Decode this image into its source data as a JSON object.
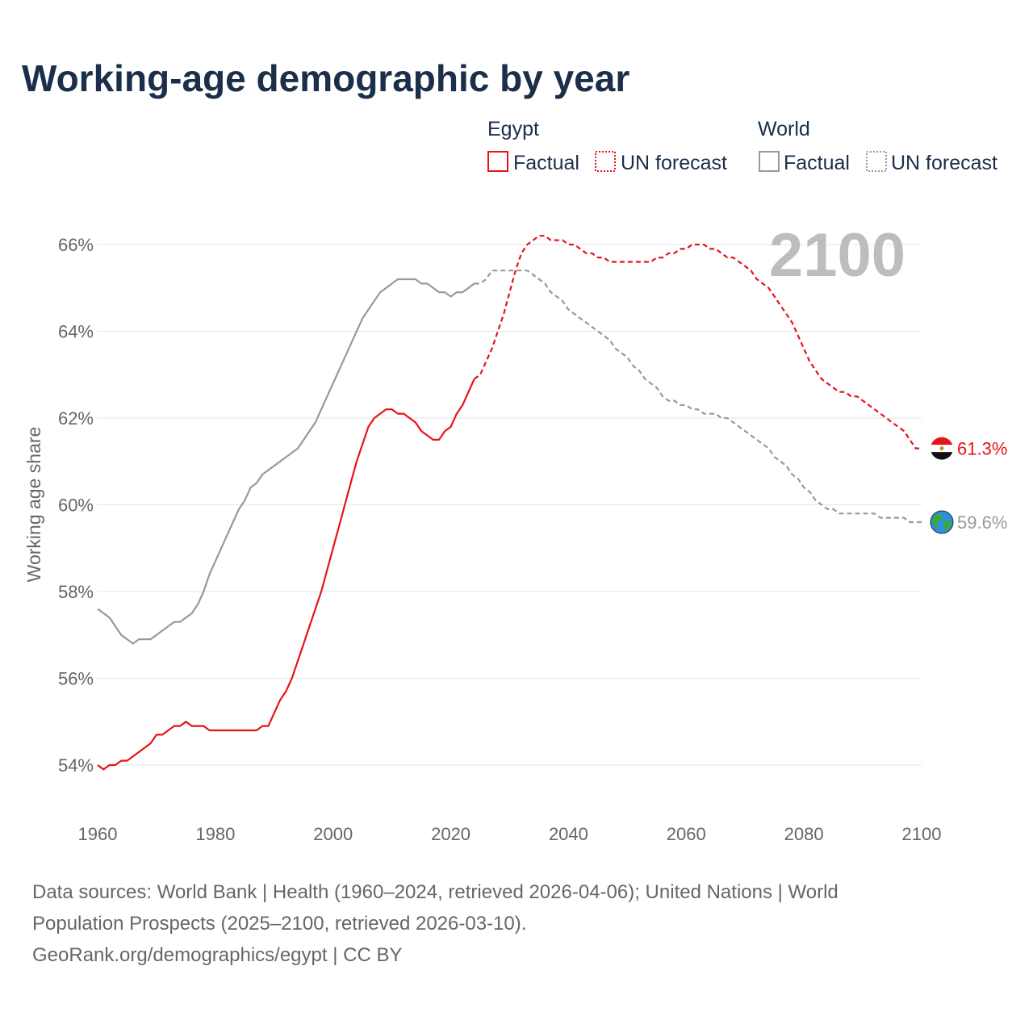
{
  "chart_data": {
    "type": "line",
    "title": "Working-age demographic by year",
    "ylabel": "Working age share",
    "xlabel": "",
    "xlim": [
      1960,
      2100
    ],
    "ylim": [
      53,
      67
    ],
    "x_ticks": [
      1960,
      1980,
      2000,
      2020,
      2040,
      2060,
      2080,
      2100
    ],
    "y_ticks": [
      54,
      56,
      58,
      60,
      62,
      64,
      66
    ],
    "y_tick_labels": [
      "54%",
      "56%",
      "58%",
      "60%",
      "62%",
      "64%",
      "66%"
    ],
    "x_tick_labels": [
      "1960",
      "1980",
      "2000",
      "2020",
      "2040",
      "2060",
      "2080",
      "2100"
    ],
    "year_label": "2100",
    "legend": {
      "groups": [
        {
          "name": "Egypt",
          "color": "#e8121a",
          "factual_label": "Factual",
          "forecast_label": "UN forecast"
        },
        {
          "name": "World",
          "color": "#999999",
          "factual_label": "Factual",
          "forecast_label": "UN forecast"
        }
      ]
    },
    "series": [
      {
        "name": "Egypt",
        "color": "#e8121a",
        "end_label": "61.3%",
        "end_icon": "egypt-flag-icon",
        "factual": [
          [
            1960,
            54.0
          ],
          [
            1961,
            53.9
          ],
          [
            1962,
            54.0
          ],
          [
            1963,
            54.0
          ],
          [
            1964,
            54.1
          ],
          [
            1965,
            54.1
          ],
          [
            1966,
            54.2
          ],
          [
            1967,
            54.3
          ],
          [
            1968,
            54.4
          ],
          [
            1969,
            54.5
          ],
          [
            1970,
            54.7
          ],
          [
            1971,
            54.7
          ],
          [
            1972,
            54.8
          ],
          [
            1973,
            54.9
          ],
          [
            1974,
            54.9
          ],
          [
            1975,
            55.0
          ],
          [
            1976,
            54.9
          ],
          [
            1977,
            54.9
          ],
          [
            1978,
            54.9
          ],
          [
            1979,
            54.8
          ],
          [
            1980,
            54.8
          ],
          [
            1981,
            54.8
          ],
          [
            1982,
            54.8
          ],
          [
            1983,
            54.8
          ],
          [
            1984,
            54.8
          ],
          [
            1985,
            54.8
          ],
          [
            1986,
            54.8
          ],
          [
            1987,
            54.8
          ],
          [
            1988,
            54.9
          ],
          [
            1989,
            54.9
          ],
          [
            1990,
            55.2
          ],
          [
            1991,
            55.5
          ],
          [
            1992,
            55.7
          ],
          [
            1993,
            56.0
          ],
          [
            1994,
            56.4
          ],
          [
            1995,
            56.8
          ],
          [
            1996,
            57.2
          ],
          [
            1997,
            57.6
          ],
          [
            1998,
            58.0
          ],
          [
            1999,
            58.5
          ],
          [
            2000,
            59.0
          ],
          [
            2001,
            59.5
          ],
          [
            2002,
            60.0
          ],
          [
            2003,
            60.5
          ],
          [
            2004,
            61.0
          ],
          [
            2005,
            61.4
          ],
          [
            2006,
            61.8
          ],
          [
            2007,
            62.0
          ],
          [
            2008,
            62.1
          ],
          [
            2009,
            62.2
          ],
          [
            2010,
            62.2
          ],
          [
            2011,
            62.1
          ],
          [
            2012,
            62.1
          ],
          [
            2013,
            62.0
          ],
          [
            2014,
            61.9
          ],
          [
            2015,
            61.7
          ],
          [
            2016,
            61.6
          ],
          [
            2017,
            61.5
          ],
          [
            2018,
            61.5
          ],
          [
            2019,
            61.7
          ],
          [
            2020,
            61.8
          ],
          [
            2021,
            62.1
          ],
          [
            2022,
            62.3
          ],
          [
            2023,
            62.6
          ],
          [
            2024,
            62.9
          ]
        ],
        "forecast": [
          [
            2024,
            62.9
          ],
          [
            2025,
            63.0
          ],
          [
            2026,
            63.3
          ],
          [
            2027,
            63.6
          ],
          [
            2028,
            64.0
          ],
          [
            2029,
            64.4
          ],
          [
            2030,
            64.9
          ],
          [
            2031,
            65.4
          ],
          [
            2032,
            65.8
          ],
          [
            2033,
            66.0
          ],
          [
            2034,
            66.1
          ],
          [
            2035,
            66.2
          ],
          [
            2036,
            66.2
          ],
          [
            2037,
            66.1
          ],
          [
            2038,
            66.1
          ],
          [
            2039,
            66.1
          ],
          [
            2040,
            66.0
          ],
          [
            2041,
            66.0
          ],
          [
            2042,
            65.9
          ],
          [
            2043,
            65.8
          ],
          [
            2044,
            65.8
          ],
          [
            2045,
            65.7
          ],
          [
            2046,
            65.7
          ],
          [
            2047,
            65.6
          ],
          [
            2048,
            65.6
          ],
          [
            2049,
            65.6
          ],
          [
            2050,
            65.6
          ],
          [
            2051,
            65.6
          ],
          [
            2052,
            65.6
          ],
          [
            2053,
            65.6
          ],
          [
            2054,
            65.6
          ],
          [
            2055,
            65.7
          ],
          [
            2056,
            65.7
          ],
          [
            2057,
            65.8
          ],
          [
            2058,
            65.8
          ],
          [
            2059,
            65.9
          ],
          [
            2060,
            65.9
          ],
          [
            2061,
            66.0
          ],
          [
            2062,
            66.0
          ],
          [
            2063,
            66.0
          ],
          [
            2064,
            65.9
          ],
          [
            2065,
            65.9
          ],
          [
            2066,
            65.8
          ],
          [
            2067,
            65.7
          ],
          [
            2068,
            65.7
          ],
          [
            2069,
            65.6
          ],
          [
            2070,
            65.5
          ],
          [
            2071,
            65.4
          ],
          [
            2072,
            65.2
          ],
          [
            2073,
            65.1
          ],
          [
            2074,
            65.0
          ],
          [
            2075,
            64.8
          ],
          [
            2076,
            64.6
          ],
          [
            2077,
            64.4
          ],
          [
            2078,
            64.2
          ],
          [
            2079,
            63.9
          ],
          [
            2080,
            63.6
          ],
          [
            2081,
            63.3
          ],
          [
            2082,
            63.1
          ],
          [
            2083,
            62.9
          ],
          [
            2084,
            62.8
          ],
          [
            2085,
            62.7
          ],
          [
            2086,
            62.6
          ],
          [
            2087,
            62.6
          ],
          [
            2088,
            62.5
          ],
          [
            2089,
            62.5
          ],
          [
            2090,
            62.4
          ],
          [
            2091,
            62.3
          ],
          [
            2092,
            62.2
          ],
          [
            2093,
            62.1
          ],
          [
            2094,
            62.0
          ],
          [
            2095,
            61.9
          ],
          [
            2096,
            61.8
          ],
          [
            2097,
            61.7
          ],
          [
            2098,
            61.5
          ],
          [
            2099,
            61.3
          ],
          [
            2100,
            61.3
          ]
        ]
      },
      {
        "name": "World",
        "color": "#999999",
        "end_label": "59.6%",
        "end_icon": "globe-icon",
        "factual": [
          [
            1960,
            57.6
          ],
          [
            1961,
            57.5
          ],
          [
            1962,
            57.4
          ],
          [
            1963,
            57.2
          ],
          [
            1964,
            57.0
          ],
          [
            1965,
            56.9
          ],
          [
            1966,
            56.8
          ],
          [
            1967,
            56.9
          ],
          [
            1968,
            56.9
          ],
          [
            1969,
            56.9
          ],
          [
            1970,
            57.0
          ],
          [
            1971,
            57.1
          ],
          [
            1972,
            57.2
          ],
          [
            1973,
            57.3
          ],
          [
            1974,
            57.3
          ],
          [
            1975,
            57.4
          ],
          [
            1976,
            57.5
          ],
          [
            1977,
            57.7
          ],
          [
            1978,
            58.0
          ],
          [
            1979,
            58.4
          ],
          [
            1980,
            58.7
          ],
          [
            1981,
            59.0
          ],
          [
            1982,
            59.3
          ],
          [
            1983,
            59.6
          ],
          [
            1984,
            59.9
          ],
          [
            1985,
            60.1
          ],
          [
            1986,
            60.4
          ],
          [
            1987,
            60.5
          ],
          [
            1988,
            60.7
          ],
          [
            1989,
            60.8
          ],
          [
            1990,
            60.9
          ],
          [
            1991,
            61.0
          ],
          [
            1992,
            61.1
          ],
          [
            1993,
            61.2
          ],
          [
            1994,
            61.3
          ],
          [
            1995,
            61.5
          ],
          [
            1996,
            61.7
          ],
          [
            1997,
            61.9
          ],
          [
            1998,
            62.2
          ],
          [
            1999,
            62.5
          ],
          [
            2000,
            62.8
          ],
          [
            2001,
            63.1
          ],
          [
            2002,
            63.4
          ],
          [
            2003,
            63.7
          ],
          [
            2004,
            64.0
          ],
          [
            2005,
            64.3
          ],
          [
            2006,
            64.5
          ],
          [
            2007,
            64.7
          ],
          [
            2008,
            64.9
          ],
          [
            2009,
            65.0
          ],
          [
            2010,
            65.1
          ],
          [
            2011,
            65.2
          ],
          [
            2012,
            65.2
          ],
          [
            2013,
            65.2
          ],
          [
            2014,
            65.2
          ],
          [
            2015,
            65.1
          ],
          [
            2016,
            65.1
          ],
          [
            2017,
            65.0
          ],
          [
            2018,
            64.9
          ],
          [
            2019,
            64.9
          ],
          [
            2020,
            64.8
          ],
          [
            2021,
            64.9
          ],
          [
            2022,
            64.9
          ],
          [
            2023,
            65.0
          ],
          [
            2024,
            65.1
          ]
        ],
        "forecast": [
          [
            2024,
            65.1
          ],
          [
            2025,
            65.1
          ],
          [
            2026,
            65.2
          ],
          [
            2027,
            65.4
          ],
          [
            2028,
            65.4
          ],
          [
            2029,
            65.4
          ],
          [
            2030,
            65.4
          ],
          [
            2031,
            65.4
          ],
          [
            2032,
            65.4
          ],
          [
            2033,
            65.4
          ],
          [
            2034,
            65.3
          ],
          [
            2035,
            65.2
          ],
          [
            2036,
            65.1
          ],
          [
            2037,
            64.9
          ],
          [
            2038,
            64.8
          ],
          [
            2039,
            64.7
          ],
          [
            2040,
            64.5
          ],
          [
            2041,
            64.4
          ],
          [
            2042,
            64.3
          ],
          [
            2043,
            64.2
          ],
          [
            2044,
            64.1
          ],
          [
            2045,
            64.0
          ],
          [
            2046,
            63.9
          ],
          [
            2047,
            63.8
          ],
          [
            2048,
            63.6
          ],
          [
            2049,
            63.5
          ],
          [
            2050,
            63.4
          ],
          [
            2051,
            63.2
          ],
          [
            2052,
            63.1
          ],
          [
            2053,
            62.9
          ],
          [
            2054,
            62.8
          ],
          [
            2055,
            62.7
          ],
          [
            2056,
            62.5
          ],
          [
            2057,
            62.4
          ],
          [
            2058,
            62.4
          ],
          [
            2059,
            62.3
          ],
          [
            2060,
            62.3
          ],
          [
            2061,
            62.2
          ],
          [
            2062,
            62.2
          ],
          [
            2063,
            62.1
          ],
          [
            2064,
            62.1
          ],
          [
            2065,
            62.1
          ],
          [
            2066,
            62.0
          ],
          [
            2067,
            62.0
          ],
          [
            2068,
            61.9
          ],
          [
            2069,
            61.8
          ],
          [
            2070,
            61.7
          ],
          [
            2071,
            61.6
          ],
          [
            2072,
            61.5
          ],
          [
            2073,
            61.4
          ],
          [
            2074,
            61.3
          ],
          [
            2075,
            61.1
          ],
          [
            2076,
            61.0
          ],
          [
            2077,
            60.9
          ],
          [
            2078,
            60.7
          ],
          [
            2079,
            60.6
          ],
          [
            2080,
            60.4
          ],
          [
            2081,
            60.3
          ],
          [
            2082,
            60.1
          ],
          [
            2083,
            60.0
          ],
          [
            2084,
            59.9
          ],
          [
            2085,
            59.9
          ],
          [
            2086,
            59.8
          ],
          [
            2087,
            59.8
          ],
          [
            2088,
            59.8
          ],
          [
            2089,
            59.8
          ],
          [
            2090,
            59.8
          ],
          [
            2091,
            59.8
          ],
          [
            2092,
            59.8
          ],
          [
            2093,
            59.7
          ],
          [
            2094,
            59.7
          ],
          [
            2095,
            59.7
          ],
          [
            2096,
            59.7
          ],
          [
            2097,
            59.7
          ],
          [
            2098,
            59.6
          ],
          [
            2099,
            59.6
          ],
          [
            2100,
            59.6
          ]
        ]
      }
    ]
  },
  "footer": {
    "line1": "Data sources: World Bank | Health (1960–2024, retrieved 2026-04-06); United Nations | World",
    "line2": "Population Prospects (2025–2100, retrieved 2026-03-10).",
    "line3": "GeoRank.org/demographics/egypt | CC BY"
  }
}
